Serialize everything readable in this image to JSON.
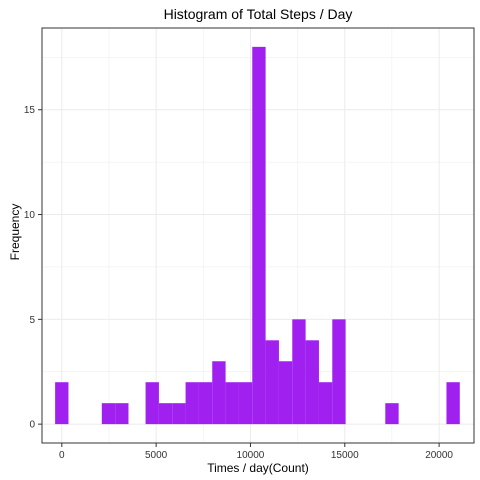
{
  "chart_data": {
    "type": "bar",
    "title": "Histogram of Total Steps / Day",
    "xlabel": "Times / day(Count)",
    "ylabel": "Frequency",
    "bin_width": 707,
    "bars": [
      {
        "x_start": -354,
        "x_end": 353,
        "count": 2
      },
      {
        "x_start": 1060,
        "x_end": 1767,
        "count": 0
      },
      {
        "x_start": 1767,
        "x_end": 2474,
        "count": 0
      },
      {
        "x_start": 2120,
        "x_end": 2827,
        "count": 1
      },
      {
        "x_start": 2827,
        "x_end": 3534,
        "count": 1
      },
      {
        "x_start": 4440,
        "x_end": 5147,
        "count": 2
      },
      {
        "x_start": 5147,
        "x_end": 5854,
        "count": 1
      },
      {
        "x_start": 5854,
        "x_end": 6561,
        "count": 1
      },
      {
        "x_start": 6561,
        "x_end": 7268,
        "count": 2
      },
      {
        "x_start": 7268,
        "x_end": 7975,
        "count": 2
      },
      {
        "x_start": 7975,
        "x_end": 8682,
        "count": 3
      },
      {
        "x_start": 8682,
        "x_end": 9389,
        "count": 2
      },
      {
        "x_start": 9389,
        "x_end": 10096,
        "count": 2
      },
      {
        "x_start": 10096,
        "x_end": 10803,
        "count": 18
      },
      {
        "x_start": 10803,
        "x_end": 11510,
        "count": 4
      },
      {
        "x_start": 11510,
        "x_end": 12217,
        "count": 3
      },
      {
        "x_start": 12217,
        "x_end": 12924,
        "count": 5
      },
      {
        "x_start": 12924,
        "x_end": 13631,
        "count": 4
      },
      {
        "x_start": 13631,
        "x_end": 14338,
        "count": 2
      },
      {
        "x_start": 14338,
        "x_end": 15045,
        "count": 5
      },
      {
        "x_start": 17148,
        "x_end": 17855,
        "count": 1
      },
      {
        "x_start": 20390,
        "x_end": 21097,
        "count": 2
      }
    ],
    "xlim": [
      -1050,
      21850
    ],
    "ylim": [
      -0.9,
      18.9
    ],
    "x_ticks": [
      0,
      5000,
      10000,
      15000,
      20000
    ],
    "y_ticks": [
      0,
      5,
      10,
      15
    ],
    "bar_color": "#A020F0",
    "grid": true,
    "panel_border_color": "#333333",
    "grid_color": "#EBEBEB"
  }
}
